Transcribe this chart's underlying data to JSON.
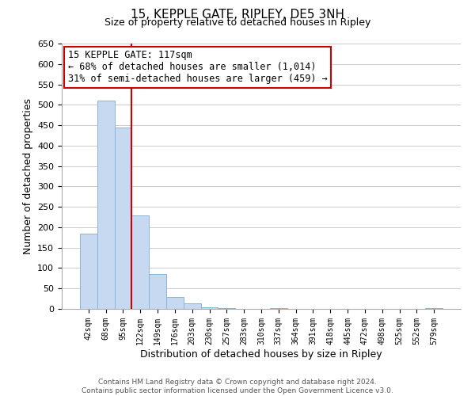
{
  "title": "15, KEPPLE GATE, RIPLEY, DE5 3NH",
  "subtitle": "Size of property relative to detached houses in Ripley",
  "xlabel": "Distribution of detached houses by size in Ripley",
  "ylabel": "Number of detached properties",
  "categories": [
    "42sqm",
    "68sqm",
    "95sqm",
    "122sqm",
    "149sqm",
    "176sqm",
    "203sqm",
    "230sqm",
    "257sqm",
    "283sqm",
    "310sqm",
    "337sqm",
    "364sqm",
    "391sqm",
    "418sqm",
    "445sqm",
    "472sqm",
    "498sqm",
    "525sqm",
    "552sqm",
    "579sqm"
  ],
  "values": [
    185,
    510,
    445,
    228,
    85,
    29,
    13,
    3,
    1,
    0,
    0,
    1,
    0,
    0,
    0,
    0,
    0,
    0,
    0,
    0,
    1
  ],
  "bar_color": "#c6d9f0",
  "bar_edge_color": "#8ab4d8",
  "vline_color": "#cc0000",
  "vline_x_idx": 2.5,
  "ylim": [
    0,
    650
  ],
  "yticks": [
    0,
    50,
    100,
    150,
    200,
    250,
    300,
    350,
    400,
    450,
    500,
    550,
    600,
    650
  ],
  "annotation_title": "15 KEPPLE GATE: 117sqm",
  "annotation_line1": "← 68% of detached houses are smaller (1,014)",
  "annotation_line2": "31% of semi-detached houses are larger (459) →",
  "annotation_box_color": "white",
  "annotation_box_edge": "#cc0000",
  "footer_line1": "Contains HM Land Registry data © Crown copyright and database right 2024.",
  "footer_line2": "Contains public sector information licensed under the Open Government Licence v3.0.",
  "bg_color": "white",
  "grid_color": "#cccccc"
}
